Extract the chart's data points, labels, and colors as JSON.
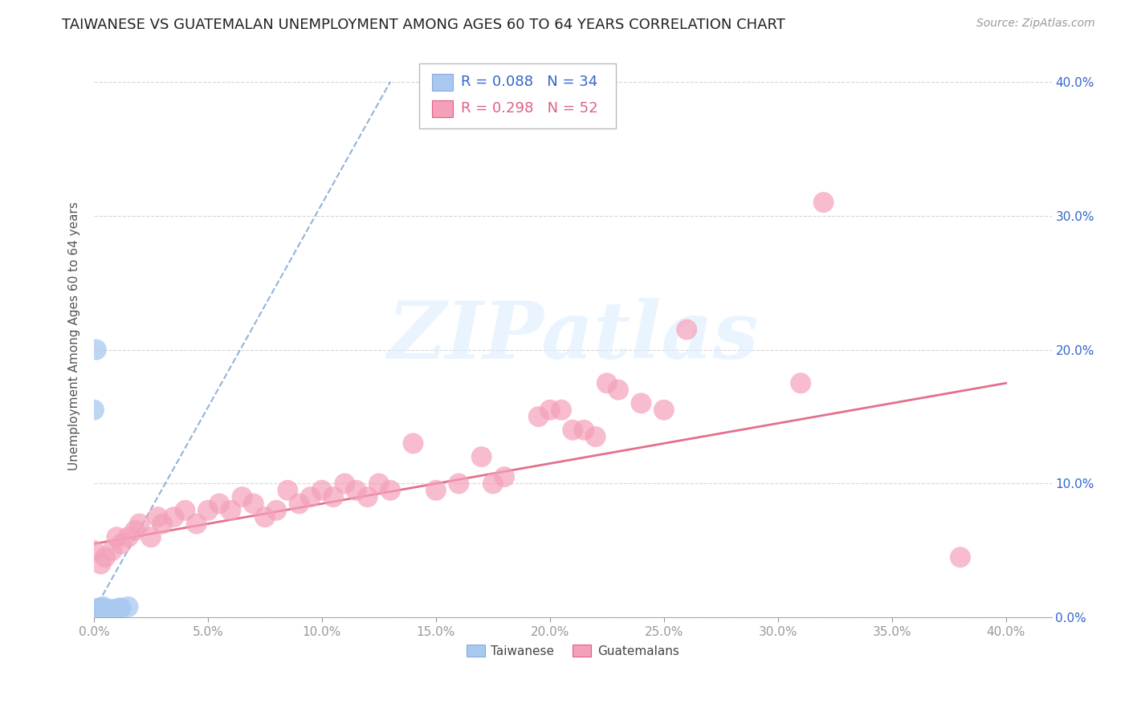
{
  "title": "TAIWANESE VS GUATEMALAN UNEMPLOYMENT AMONG AGES 60 TO 64 YEARS CORRELATION CHART",
  "source": "Source: ZipAtlas.com",
  "ylabel": "Unemployment Among Ages 60 to 64 years",
  "ylim": [
    0.0,
    0.42
  ],
  "xlim": [
    0.0,
    0.42
  ],
  "taiwan_r": 0.088,
  "taiwan_n": 34,
  "guatemala_r": 0.298,
  "guatemala_n": 52,
  "taiwan_color": "#a8c8f0",
  "guatemala_color": "#f4a0b8",
  "taiwan_line_color": "#88aad8",
  "guatemala_line_color": "#e06080",
  "background_color": "#ffffff",
  "grid_color": "#cccccc",
  "tw_line_x0": 0.0,
  "tw_line_y0": 0.005,
  "tw_line_x1": 0.13,
  "tw_line_y1": 0.4,
  "gt_line_x0": 0.0,
  "gt_line_y0": 0.055,
  "gt_line_x1": 0.4,
  "gt_line_y1": 0.175,
  "taiwan_x": [
    0.0,
    0.0,
    0.0,
    0.001,
    0.001,
    0.002,
    0.002,
    0.002,
    0.002,
    0.002,
    0.003,
    0.003,
    0.003,
    0.003,
    0.003,
    0.004,
    0.004,
    0.004,
    0.004,
    0.004,
    0.005,
    0.005,
    0.005,
    0.006,
    0.006,
    0.007,
    0.008,
    0.009,
    0.01,
    0.011,
    0.012,
    0.015,
    0.0,
    0.001
  ],
  "taiwan_y": [
    0.0,
    0.002,
    0.003,
    0.003,
    0.004,
    0.003,
    0.004,
    0.005,
    0.006,
    0.007,
    0.003,
    0.004,
    0.005,
    0.006,
    0.007,
    0.003,
    0.004,
    0.005,
    0.006,
    0.008,
    0.004,
    0.005,
    0.006,
    0.005,
    0.006,
    0.005,
    0.006,
    0.006,
    0.006,
    0.007,
    0.007,
    0.008,
    0.155,
    0.2
  ],
  "guatemala_x": [
    0.0,
    0.003,
    0.005,
    0.008,
    0.01,
    0.012,
    0.015,
    0.018,
    0.02,
    0.025,
    0.028,
    0.03,
    0.035,
    0.04,
    0.045,
    0.05,
    0.055,
    0.06,
    0.065,
    0.07,
    0.075,
    0.08,
    0.085,
    0.09,
    0.095,
    0.1,
    0.105,
    0.11,
    0.115,
    0.12,
    0.125,
    0.13,
    0.14,
    0.15,
    0.16,
    0.17,
    0.175,
    0.18,
    0.195,
    0.2,
    0.205,
    0.21,
    0.215,
    0.22,
    0.225,
    0.23,
    0.24,
    0.25,
    0.26,
    0.31,
    0.32,
    0.38
  ],
  "guatemala_y": [
    0.05,
    0.04,
    0.045,
    0.05,
    0.06,
    0.055,
    0.06,
    0.065,
    0.07,
    0.06,
    0.075,
    0.07,
    0.075,
    0.08,
    0.07,
    0.08,
    0.085,
    0.08,
    0.09,
    0.085,
    0.075,
    0.08,
    0.095,
    0.085,
    0.09,
    0.095,
    0.09,
    0.1,
    0.095,
    0.09,
    0.1,
    0.095,
    0.13,
    0.095,
    0.1,
    0.12,
    0.1,
    0.105,
    0.15,
    0.155,
    0.155,
    0.14,
    0.14,
    0.135,
    0.175,
    0.17,
    0.16,
    0.155,
    0.215,
    0.175,
    0.31,
    0.045
  ],
  "watermark_text": "ZIPatlas",
  "title_fontsize": 13,
  "source_fontsize": 10,
  "axis_label_fontsize": 11,
  "tick_fontsize": 11,
  "legend_fontsize": 13
}
